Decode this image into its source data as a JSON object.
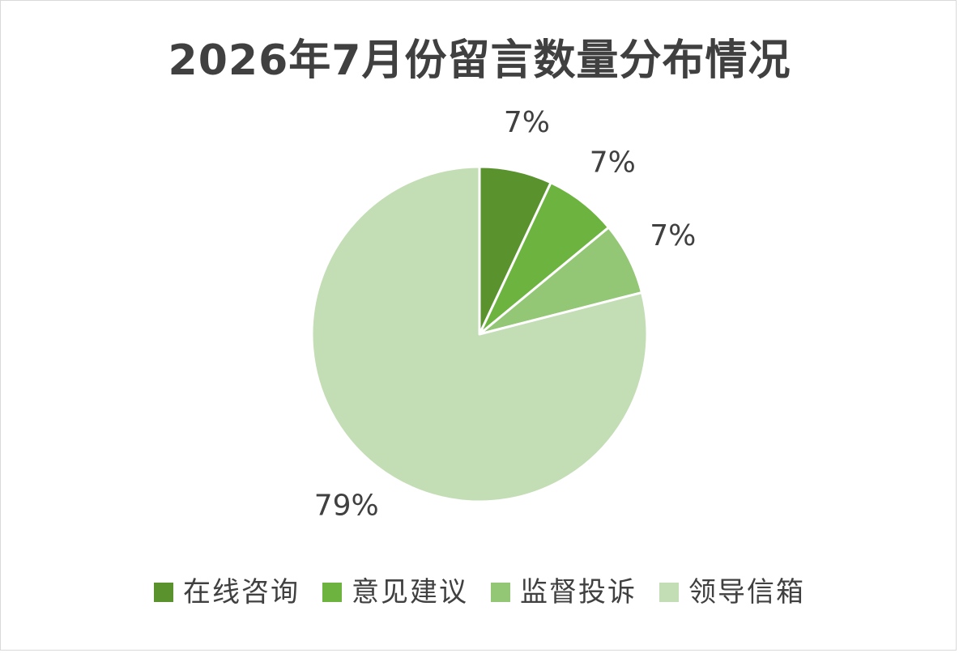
{
  "chart_data": {
    "type": "pie",
    "title": "2026年7月份留言数量分布情况",
    "series": [
      {
        "categories": [
          "在线咨询",
          "意见建议",
          "监督投诉",
          "领导信箱"
        ],
        "values": [
          7,
          7,
          7,
          79
        ],
        "labels": [
          "7%",
          "7%",
          "7%",
          "79%"
        ],
        "colors": [
          "#5a922e",
          "#6db33f",
          "#93c776",
          "#c3ddb5"
        ]
      }
    ],
    "start_angle": "12 o'clock, clockwise",
    "legend_position": "bottom"
  }
}
